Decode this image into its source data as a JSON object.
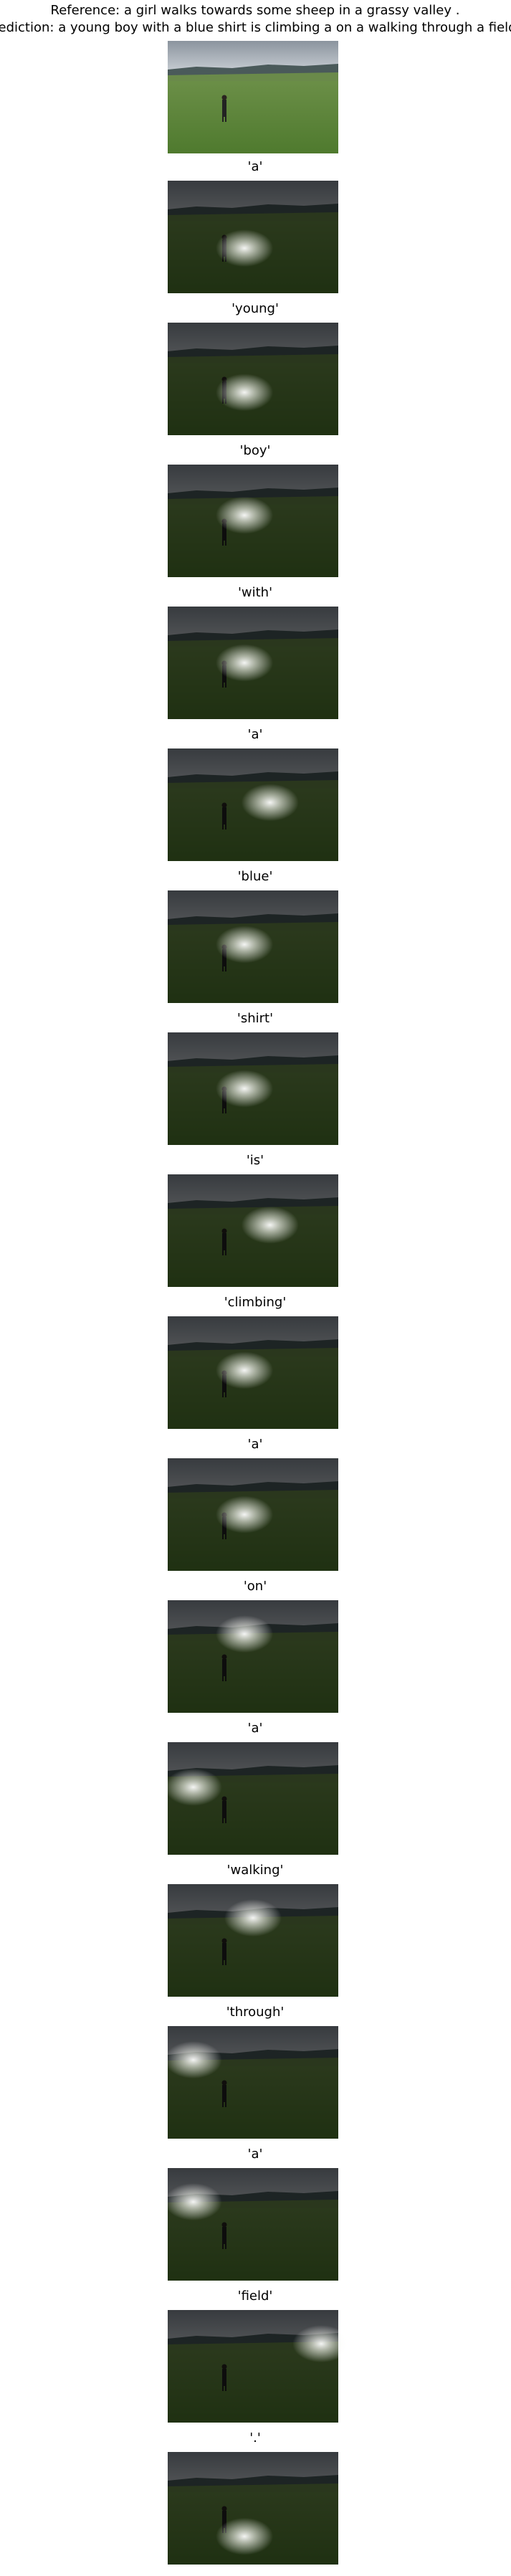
{
  "reference": "Reference: a girl walks towards some sheep in a grassy valley .",
  "prediction": "Prediction: a young boy with a blue shirt is climbing a on a walking through a field .",
  "words": [
    "'a'",
    "'young'",
    "'boy'",
    "'with'",
    "'a'",
    "'blue'",
    "'shirt'",
    "'is'",
    "'climbing'",
    "'a'",
    "'on'",
    "'a'",
    "'walking'",
    "'through'",
    "'a'",
    "'field'",
    "'.'"
  ]
}
